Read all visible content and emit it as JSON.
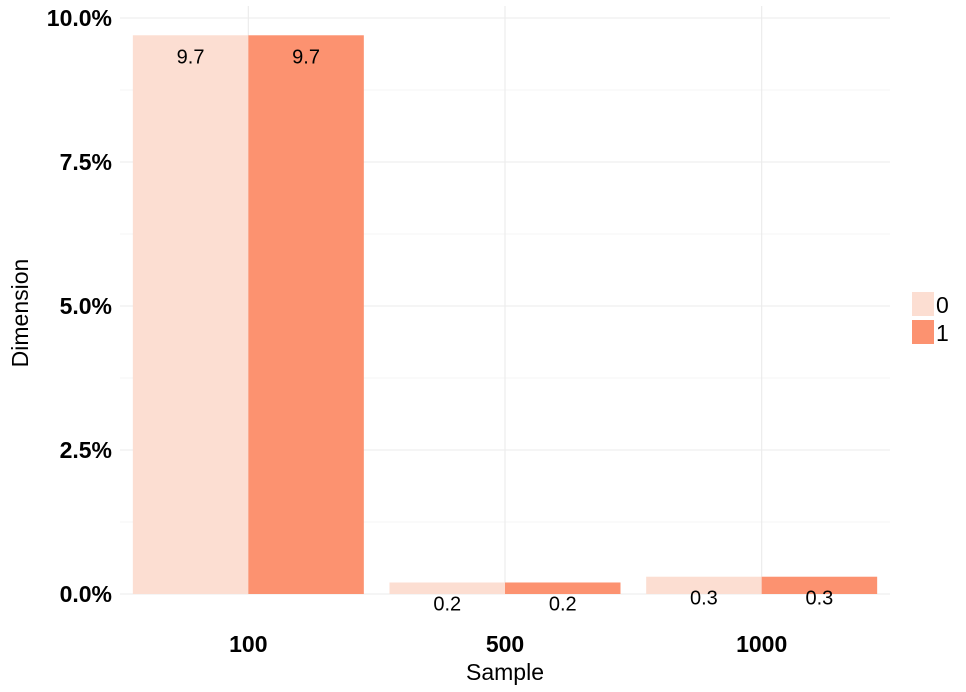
{
  "chart_data": {
    "type": "bar",
    "categories": [
      "100",
      "500",
      "1000"
    ],
    "series": [
      {
        "name": "0",
        "values": [
          9.7,
          0.2,
          0.3
        ],
        "color": "#FCDED2"
      },
      {
        "name": "1",
        "values": [
          9.7,
          0.2,
          0.3
        ],
        "color": "#FC9270"
      }
    ],
    "data_labels": [
      [
        "9.7",
        "0.2",
        "0.3"
      ],
      [
        "9.7",
        "0.2",
        "0.3"
      ]
    ],
    "xlabel": "Sample",
    "ylabel": "Dimension",
    "ylim": [
      0,
      10
    ],
    "yticks": [
      0,
      2.5,
      5,
      7.5,
      10
    ],
    "ytick_labels": [
      "0.0%",
      "2.5%",
      "5.0%",
      "7.5%",
      "10.0%"
    ],
    "grid": true,
    "legend_position": "right"
  }
}
